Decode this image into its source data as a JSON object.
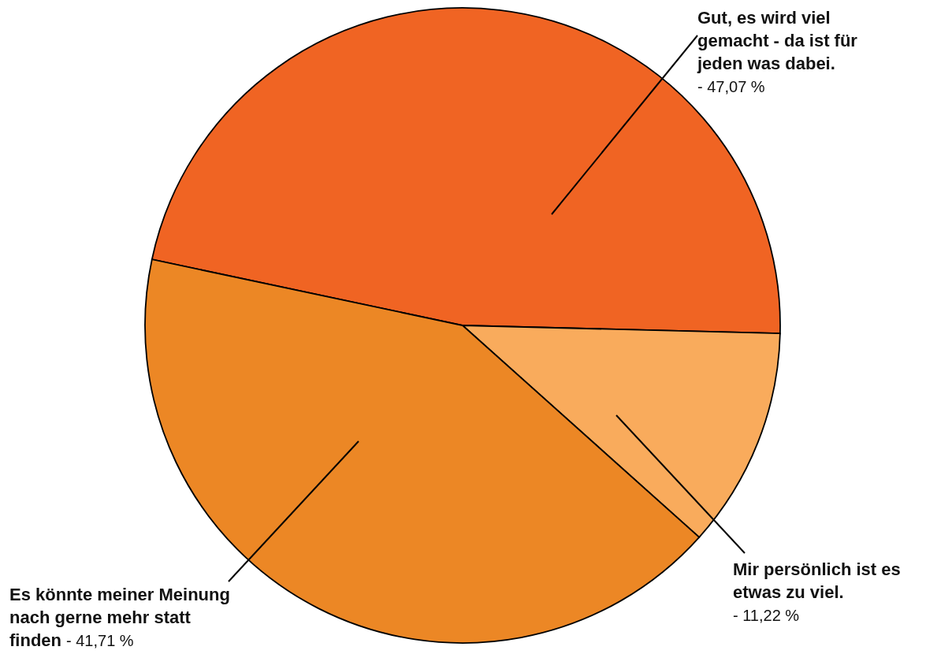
{
  "chart_data": {
    "type": "pie",
    "categories": [
      "Gut, es wird viel gemacht - da ist für jeden was dabei.",
      "Mir persönlich ist es etwas zu viel.",
      "Es könnte meiner Meinung nach gerne mehr statt finden"
    ],
    "values": [
      47.07,
      11.22,
      41.71
    ],
    "colors": [
      "#f06423",
      "#f9ab5c",
      "#ec8725"
    ],
    "value_labels": [
      "47,07 %",
      "11,22 %",
      "41,71 %"
    ],
    "annotations": [
      "-",
      "-",
      "-"
    ]
  }
}
